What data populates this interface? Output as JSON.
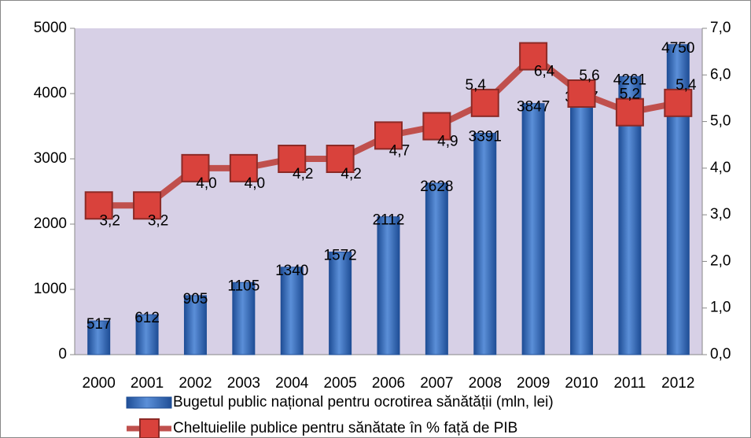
{
  "chart_data": {
    "type": "bar",
    "categories": [
      "2000",
      "2001",
      "2002",
      "2003",
      "2004",
      "2005",
      "2006",
      "2007",
      "2008",
      "2009",
      "2010",
      "2011",
      "2012"
    ],
    "series": [
      {
        "name": "Bugetul public național pentru ocrotirea sănătății (mln, lei)",
        "type": "bar",
        "color": "#3b6fc1",
        "values": [
          517,
          612,
          905,
          1105,
          1340,
          1572,
          2112,
          2628,
          3391,
          3847,
          3997,
          4261,
          4750
        ]
      },
      {
        "name": "Cheltuielile publice pentru sănătate în % față de PIB",
        "type": "line",
        "axis": "y2",
        "color": "#c0504d",
        "values": [
          3.2,
          3.2,
          4.0,
          4.0,
          4.2,
          4.2,
          4.7,
          4.9,
          5.4,
          6.4,
          5.6,
          5.2,
          5.4
        ],
        "value_labels": [
          "3,2",
          "3,2",
          "4,0",
          "4,0",
          "4,2",
          "4,2",
          "4,7",
          "4,9",
          "5,4",
          "6,4",
          "5,6",
          "5,2",
          "5,4"
        ]
      }
    ],
    "ylim": [
      0,
      5000
    ],
    "yticks": [
      0,
      1000,
      2000,
      3000,
      4000,
      5000
    ],
    "y2lim": [
      0,
      7
    ],
    "y2ticks": [
      {
        "value": 0,
        "label": "0,0"
      },
      {
        "value": 1,
        "label": "1,0"
      },
      {
        "value": 2,
        "label": "2,0"
      },
      {
        "value": 3,
        "label": "3,0"
      },
      {
        "value": 4,
        "label": "4,0"
      },
      {
        "value": 5,
        "label": "5,0"
      },
      {
        "value": 6,
        "label": "6,0"
      },
      {
        "value": 7,
        "label": "7,0"
      }
    ],
    "legend": "bottom"
  }
}
